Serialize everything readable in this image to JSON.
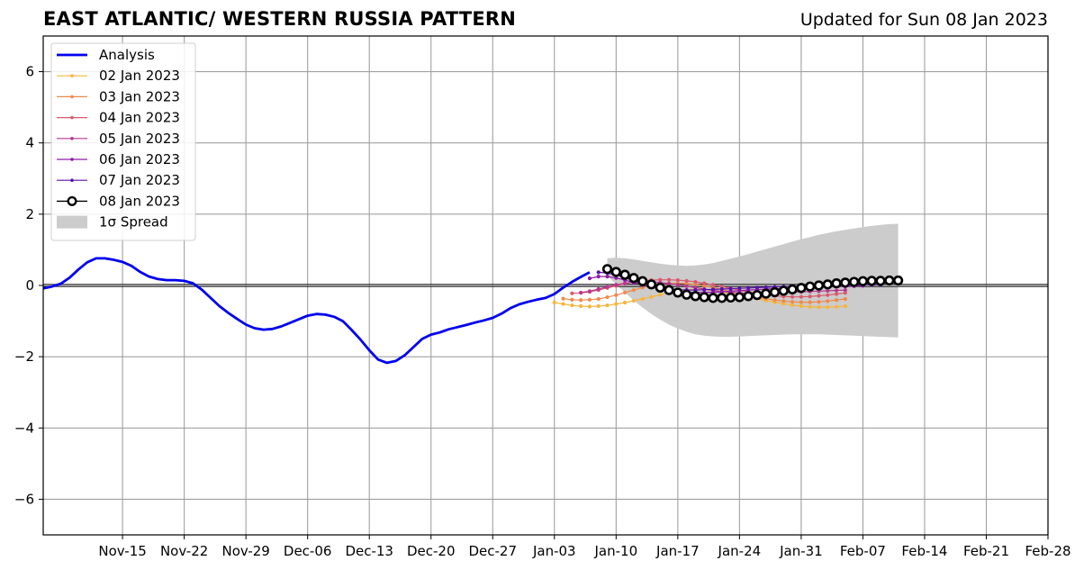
{
  "header": {
    "title": "EAST ATLANTIC/ WESTERN RUSSIA PATTERN",
    "updated": "Updated for Sun 08 Jan 2023"
  },
  "chart_data": {
    "type": "line",
    "title": "EAST ATLANTIC/ WESTERN RUSSIA PATTERN",
    "subtitle": "Updated for Sun 08 Jan 2023",
    "xlabel": "",
    "ylabel": "",
    "xlim": [
      "2022-11-06",
      "2023-02-28"
    ],
    "ylim": [
      -7,
      7
    ],
    "x_tick_labels": [
      "Nov-15",
      "Nov-22",
      "Nov-29",
      "Dec-06",
      "Dec-13",
      "Dec-20",
      "Dec-27",
      "Jan-03",
      "Jan-10",
      "Jan-17",
      "Jan-24",
      "Jan-31",
      "Feb-07",
      "Feb-14",
      "Feb-21",
      "Feb-28"
    ],
    "x_tick_dates": [
      "2022-11-15",
      "2022-11-22",
      "2022-11-29",
      "2022-12-06",
      "2022-12-13",
      "2022-12-20",
      "2022-12-27",
      "2023-01-03",
      "2023-01-10",
      "2023-01-17",
      "2023-01-24",
      "2023-01-31",
      "2023-02-07",
      "2023-02-14",
      "2023-02-21",
      "2023-02-28"
    ],
    "y_ticks": [
      -6,
      -4,
      -2,
      0,
      2,
      4,
      6
    ],
    "y_tick_labels": [
      "−6",
      "−4",
      "−2",
      "0",
      "2",
      "4",
      "6"
    ],
    "grid": true,
    "legend_position": "top-left",
    "zero_line": 0,
    "analysis": {
      "name": "Analysis",
      "color": "#0000ee",
      "start_date": "2022-11-06",
      "values": [
        -0.08,
        -0.03,
        0.05,
        0.22,
        0.45,
        0.65,
        0.76,
        0.76,
        0.72,
        0.66,
        0.55,
        0.38,
        0.25,
        0.18,
        0.15,
        0.15,
        0.13,
        0.06,
        -0.12,
        -0.35,
        -0.58,
        -0.77,
        -0.94,
        -1.1,
        -1.2,
        -1.24,
        -1.22,
        -1.15,
        -1.05,
        -0.95,
        -0.85,
        -0.8,
        -0.82,
        -0.88,
        -1.0,
        -1.25,
        -1.52,
        -1.82,
        -2.08,
        -2.17,
        -2.12,
        -1.96,
        -1.73,
        -1.5,
        -1.38,
        -1.32,
        -1.23,
        -1.17,
        -1.11,
        -1.04,
        -0.98,
        -0.91,
        -0.79,
        -0.64,
        -0.53,
        -0.46,
        -0.4,
        -0.35,
        -0.24,
        -0.06,
        0.1,
        0.24,
        0.37
      ]
    },
    "spread": {
      "name": "1σ Spread",
      "color": "#cccccc",
      "start_date": "2023-01-09",
      "upper": [
        0.76,
        0.78,
        0.76,
        0.73,
        0.69,
        0.65,
        0.61,
        0.58,
        0.56,
        0.55,
        0.56,
        0.59,
        0.63,
        0.69,
        0.75,
        0.81,
        0.88,
        0.95,
        1.02,
        1.09,
        1.16,
        1.23,
        1.3,
        1.36,
        1.42,
        1.47,
        1.52,
        1.56,
        1.6,
        1.64,
        1.67,
        1.7,
        1.72,
        1.73
      ],
      "lower": [
        0.27,
        0.03,
        -0.2,
        -0.42,
        -0.62,
        -0.8,
        -0.96,
        -1.1,
        -1.21,
        -1.3,
        -1.37,
        -1.41,
        -1.43,
        -1.44,
        -1.44,
        -1.43,
        -1.42,
        -1.41,
        -1.4,
        -1.39,
        -1.38,
        -1.37,
        -1.37,
        -1.37,
        -1.37,
        -1.38,
        -1.39,
        -1.4,
        -1.41,
        -1.42,
        -1.43,
        -1.44,
        -1.45,
        -1.46
      ]
    },
    "series": [
      {
        "name": "02 Jan 2023",
        "color": "#f6b53c",
        "start_date": "2023-01-03",
        "values": [
          -0.48,
          -0.52,
          -0.56,
          -0.58,
          -0.59,
          -0.58,
          -0.56,
          -0.52,
          -0.48,
          -0.43,
          -0.38,
          -0.32,
          -0.26,
          -0.2,
          -0.15,
          -0.12,
          -0.11,
          -0.12,
          -0.14,
          -0.18,
          -0.22,
          -0.27,
          -0.32,
          -0.37,
          -0.42,
          -0.47,
          -0.51,
          -0.55,
          -0.58,
          -0.6,
          -0.61,
          -0.61,
          -0.6,
          -0.58
        ]
      },
      {
        "name": "03 Jan 2023",
        "color": "#f08a4b",
        "start_date": "2023-01-04",
        "values": [
          -0.37,
          -0.4,
          -0.41,
          -0.4,
          -0.38,
          -0.33,
          -0.27,
          -0.2,
          -0.13,
          -0.06,
          0.0,
          0.04,
          0.06,
          0.06,
          0.05,
          0.03,
          -0.01,
          -0.06,
          -0.11,
          -0.17,
          -0.23,
          -0.28,
          -0.33,
          -0.37,
          -0.41,
          -0.44,
          -0.46,
          -0.47,
          -0.47,
          -0.46,
          -0.44,
          -0.41,
          -0.38
        ]
      },
      {
        "name": "04 Jan 2023",
        "color": "#dc5a6e",
        "start_date": "2023-01-05",
        "values": [
          -0.22,
          -0.21,
          -0.18,
          -0.13,
          -0.07,
          -0.01,
          0.05,
          0.1,
          0.13,
          0.15,
          0.16,
          0.16,
          0.15,
          0.13,
          0.1,
          0.06,
          0.02,
          -0.03,
          -0.08,
          -0.13,
          -0.18,
          -0.22,
          -0.26,
          -0.29,
          -0.31,
          -0.32,
          -0.32,
          -0.31,
          -0.29,
          -0.27,
          -0.24,
          -0.21
        ]
      },
      {
        "name": "05 Jan 2023",
        "color": "#b8378f",
        "start_date": "2023-01-06",
        "values": [
          -0.2,
          -0.16,
          -0.1,
          -0.04,
          0.02,
          0.06,
          0.09,
          0.1,
          0.1,
          0.08,
          0.05,
          0.02,
          -0.02,
          -0.06,
          -0.1,
          -0.14,
          -0.17,
          -0.19,
          -0.21,
          -0.22,
          -0.22,
          -0.22,
          -0.21,
          -0.2,
          -0.19,
          -0.18,
          -0.17,
          -0.16,
          -0.15,
          -0.14,
          -0.13
        ]
      },
      {
        "name": "06 Jan 2023",
        "color": "#8e1aa3",
        "start_date": "2023-01-07",
        "values": [
          0.2,
          0.25,
          0.25,
          0.21,
          0.15,
          0.08,
          0.01,
          -0.05,
          -0.1,
          -0.14,
          -0.17,
          -0.19,
          -0.2,
          -0.2,
          -0.19,
          -0.18,
          -0.16,
          -0.15,
          -0.13,
          -0.12,
          -0.1,
          -0.09,
          -0.08,
          -0.07,
          -0.06,
          -0.05,
          -0.04,
          -0.04,
          -0.03,
          -0.03,
          -0.02,
          -0.01
        ]
      },
      {
        "name": "07 Jan 2023",
        "color": "#5a12a8",
        "start_date": "2023-01-08",
        "values": [
          0.37,
          0.35,
          0.3,
          0.22,
          0.13,
          0.05,
          -0.02,
          -0.07,
          -0.1,
          -0.12,
          -0.13,
          -0.13,
          -0.12,
          -0.11,
          -0.1,
          -0.09,
          -0.08,
          -0.07,
          -0.06,
          -0.05,
          -0.04,
          -0.03,
          -0.02,
          -0.02,
          -0.01,
          -0.01,
          0.0,
          0.0,
          0.01,
          0.01,
          0.02,
          0.02,
          0.02
        ]
      },
      {
        "name": "08 Jan 2023",
        "color": "#000000",
        "start_date": "2023-01-09",
        "values": [
          0.46,
          0.38,
          0.3,
          0.21,
          0.12,
          0.03,
          -0.06,
          -0.13,
          -0.2,
          -0.26,
          -0.3,
          -0.33,
          -0.35,
          -0.35,
          -0.34,
          -0.33,
          -0.3,
          -0.27,
          -0.23,
          -0.19,
          -0.15,
          -0.11,
          -0.07,
          -0.03,
          0.0,
          0.03,
          0.06,
          0.08,
          0.1,
          0.12,
          0.13,
          0.13,
          0.14,
          0.14
        ]
      }
    ],
    "legend": [
      "Analysis",
      "02 Jan 2023",
      "03 Jan 2023",
      "04 Jan 2023",
      "05 Jan 2023",
      "06 Jan 2023",
      "07 Jan 2023",
      "08 Jan 2023",
      "1σ Spread"
    ]
  }
}
